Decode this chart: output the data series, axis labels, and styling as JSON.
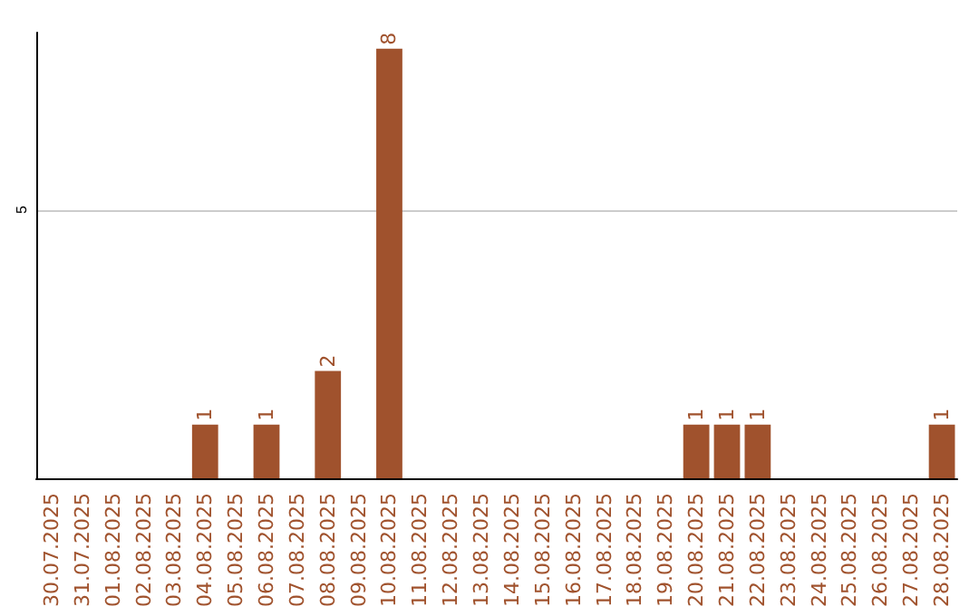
{
  "chart_data": {
    "type": "bar",
    "categories": [
      "30.07.2025",
      "31.07.2025",
      "01.08.2025",
      "02.08.2025",
      "03.08.2025",
      "04.08.2025",
      "05.08.2025",
      "06.08.2025",
      "07.08.2025",
      "08.08.2025",
      "09.08.2025",
      "10.08.2025",
      "11.08.2025",
      "12.08.2025",
      "13.08.2025",
      "14.08.2025",
      "15.08.2025",
      "16.08.2025",
      "17.08.2025",
      "18.08.2025",
      "19.08.2025",
      "20.08.2025",
      "21.08.2025",
      "22.08.2025",
      "23.08.2025",
      "24.08.2025",
      "25.08.2025",
      "26.08.2025",
      "27.08.2025",
      "28.08.2025"
    ],
    "values": [
      0,
      0,
      0,
      0,
      0,
      1,
      0,
      1,
      0,
      2,
      0,
      8,
      0,
      0,
      0,
      0,
      0,
      0,
      0,
      0,
      0,
      1,
      1,
      1,
      0,
      0,
      0,
      0,
      0,
      1
    ],
    "value_labels": [
      null,
      null,
      null,
      null,
      null,
      "1",
      null,
      "1",
      null,
      "2",
      null,
      "8",
      null,
      null,
      null,
      null,
      null,
      null,
      null,
      null,
      null,
      "1",
      "1",
      "1",
      null,
      null,
      null,
      null,
      null,
      "1"
    ],
    "color": "#a0522d",
    "ylim": [
      0,
      8.3
    ],
    "yticks": [
      5
    ],
    "grid": "y"
  }
}
